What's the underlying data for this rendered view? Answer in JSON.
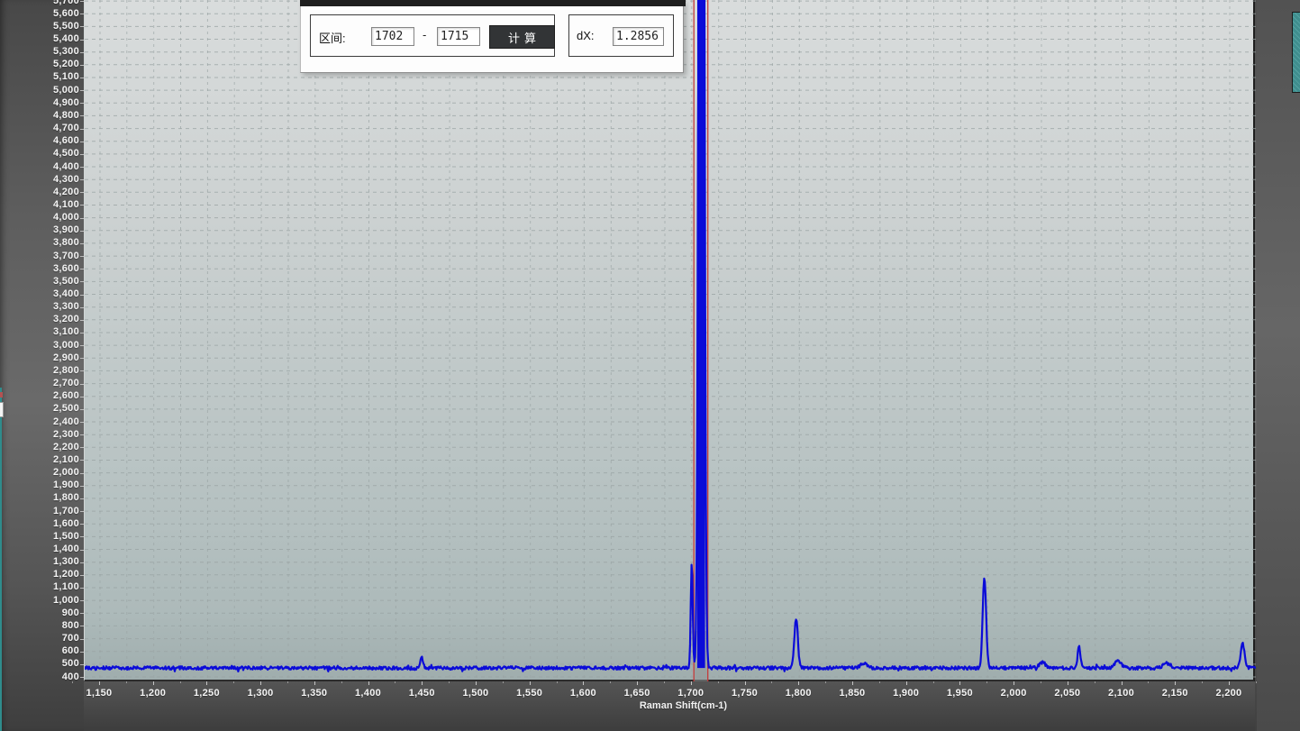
{
  "dialog": {
    "interval_label": "区间:",
    "from_value": "1702",
    "separator": "-",
    "to_value": "1715",
    "calc_button_label": "计算",
    "dx_label": "dX:",
    "dx_value": "1.2856"
  },
  "chart_data": {
    "type": "line",
    "title": "",
    "xlabel": "Raman Shift(cm-1)",
    "ylabel": "",
    "xlim": [
      1135.8,
      2224.3
    ],
    "ylim": [
      364.7,
      5707.5
    ],
    "x_tick_labels": [
      1150,
      1200,
      1250,
      1300,
      1350,
      1400,
      1450,
      1500,
      1550,
      1600,
      1650,
      1700,
      1750,
      1800,
      1850,
      1900,
      1950,
      2000,
      2050,
      2100,
      2150,
      2200
    ],
    "y_ticks": {
      "min": 400,
      "max": 5700,
      "step": 100
    },
    "grid": {
      "x_step": 25,
      "y_step": 100,
      "style": "dashed",
      "color": "#99a3a3"
    },
    "legend": "off",
    "line_color": "#0b0bd8",
    "baseline_intensity": 470,
    "noise_amplitude": 13,
    "peaks": [
      {
        "x": 1449,
        "intensity": 560,
        "sigma": 1.2
      },
      {
        "x": 1700,
        "intensity": 1300,
        "sigma": 0.9
      },
      {
        "x": 1709,
        "intensity": 20000,
        "sigma": 1.8,
        "clipped": true,
        "solid_from": 1705.2,
        "solid_to": 1712.4
      },
      {
        "x": 1797,
        "intensity": 860,
        "sigma": 1.6
      },
      {
        "x": 1972,
        "intensity": 1180,
        "sigma": 1.6
      },
      {
        "x": 2060,
        "intensity": 640,
        "sigma": 1.3
      },
      {
        "x": 2212,
        "intensity": 660,
        "sigma": 1.8
      },
      {
        "x": 1860,
        "intensity": 506,
        "sigma": 3.0
      },
      {
        "x": 2026,
        "intensity": 512,
        "sigma": 3.0
      },
      {
        "x": 2096,
        "intensity": 524,
        "sigma": 3.0
      },
      {
        "x": 2141,
        "intensity": 508,
        "sigma": 3.0
      }
    ],
    "cursors": {
      "values": [
        1702,
        1715
      ],
      "color": "#c43a3a"
    },
    "selection_band": {
      "from": 1702,
      "to": 1715,
      "color": "#8f9898"
    }
  }
}
